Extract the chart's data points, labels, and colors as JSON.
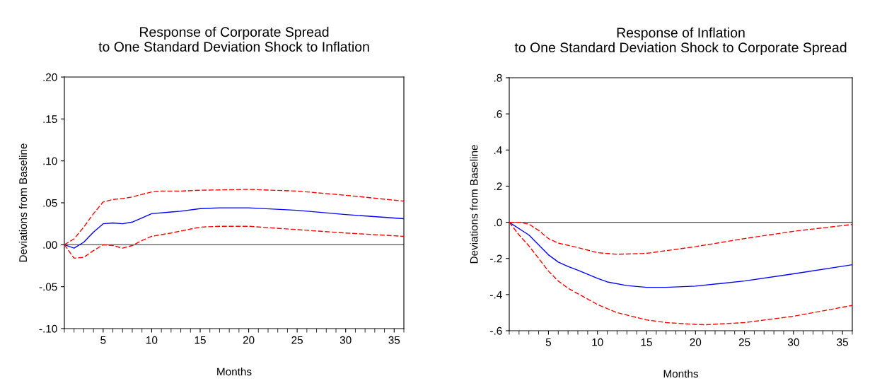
{
  "chart_data": [
    {
      "type": "line",
      "title": "Response of Corporate Spread\nto One Standard Deviation Shock to Inflation",
      "xlabel": "Months",
      "ylabel": "Deviations from Baseline",
      "xlim": [
        1,
        36
      ],
      "ylim": [
        -0.1,
        0.2
      ],
      "xticks": [
        {
          "value": 1,
          "label": null
        },
        {
          "value": 2,
          "label": null
        },
        {
          "value": 3,
          "label": null
        },
        {
          "value": 4,
          "label": null
        },
        5,
        {
          "value": 6,
          "label": null
        },
        {
          "value": 7,
          "label": null
        },
        {
          "value": 8,
          "label": null
        },
        {
          "value": 9,
          "label": null
        },
        10,
        {
          "value": 11,
          "label": null
        },
        {
          "value": 12,
          "label": null
        },
        {
          "value": 13,
          "label": null
        },
        {
          "value": 14,
          "label": null
        },
        15,
        {
          "value": 16,
          "label": null
        },
        {
          "value": 17,
          "label": null
        },
        {
          "value": 18,
          "label": null
        },
        {
          "value": 19,
          "label": null
        },
        20,
        {
          "value": 21,
          "label": null
        },
        {
          "value": 22,
          "label": null
        },
        {
          "value": 23,
          "label": null
        },
        {
          "value": 24,
          "label": null
        },
        25,
        {
          "value": 26,
          "label": null
        },
        {
          "value": 27,
          "label": null
        },
        {
          "value": 28,
          "label": null
        },
        {
          "value": 29,
          "label": null
        },
        30,
        {
          "value": 31,
          "label": null
        },
        {
          "value": 32,
          "label": null
        },
        {
          "value": 33,
          "label": null
        },
        {
          "value": 34,
          "label": null
        },
        35,
        {
          "value": 36,
          "label": null
        }
      ],
      "yticks": [
        {
          "value": -0.1,
          "label": "-.10"
        },
        {
          "value": -0.05,
          "label": "-.05"
        },
        {
          "value": 0.0,
          "label": ".00"
        },
        {
          "value": 0.05,
          "label": ".05"
        },
        {
          "value": 0.1,
          "label": ".10"
        },
        {
          "value": 0.15,
          "label": ".15"
        },
        {
          "value": 0.2,
          "label": ".20"
        }
      ],
      "ref_lines": [
        {
          "axis": "y",
          "value": 0,
          "color": "#555555"
        }
      ],
      "series": [
        {
          "color": "#0000ff",
          "line_style": "solid",
          "x": [
            1,
            2,
            3,
            4,
            5,
            6,
            7,
            8,
            9,
            10,
            12,
            13,
            15,
            17,
            20,
            25,
            30,
            36
          ],
          "values": [
            0,
            -0.004,
            0.003,
            0.015,
            0.025,
            0.026,
            0.025,
            0.027,
            0.032,
            0.037,
            0.039,
            0.04,
            0.043,
            0.044,
            0.044,
            0.041,
            0.036,
            0.031
          ]
        },
        {
          "color": "#ff0000",
          "line_style": "dashed",
          "x": [
            1,
            2,
            3,
            4,
            5,
            6,
            7,
            8,
            9,
            10,
            11,
            13,
            15,
            20,
            25,
            30,
            36
          ],
          "values": [
            0,
            0.007,
            0.021,
            0.037,
            0.051,
            0.054,
            0.055,
            0.057,
            0.06,
            0.063,
            0.064,
            0.064,
            0.065,
            0.066,
            0.064,
            0.059,
            0.052
          ]
        },
        {
          "color": "#ff0000",
          "line_style": "dashed",
          "x": [
            1,
            2,
            3,
            4,
            5,
            6,
            7,
            8,
            9,
            10,
            12,
            15,
            17,
            20,
            25,
            30,
            36
          ],
          "values": [
            0,
            -0.016,
            -0.015,
            -0.007,
            0.0,
            -0.001,
            -0.004,
            -0.001,
            0.005,
            0.01,
            0.014,
            0.021,
            0.022,
            0.022,
            0.018,
            0.014,
            0.01
          ]
        }
      ]
    },
    {
      "type": "line",
      "title": "Response of Inflation\nto One Standard Deviation Shock to Corporate Spread",
      "xlabel": "Months",
      "ylabel": "Deviations from Baseline",
      "xlim": [
        1,
        36
      ],
      "ylim": [
        -0.6,
        0.8
      ],
      "xticks": [
        {
          "value": 1,
          "label": null
        },
        {
          "value": 2,
          "label": null
        },
        {
          "value": 3,
          "label": null
        },
        {
          "value": 4,
          "label": null
        },
        5,
        {
          "value": 6,
          "label": null
        },
        {
          "value": 7,
          "label": null
        },
        {
          "value": 8,
          "label": null
        },
        {
          "value": 9,
          "label": null
        },
        10,
        {
          "value": 11,
          "label": null
        },
        {
          "value": 12,
          "label": null
        },
        {
          "value": 13,
          "label": null
        },
        {
          "value": 14,
          "label": null
        },
        15,
        {
          "value": 16,
          "label": null
        },
        {
          "value": 17,
          "label": null
        },
        {
          "value": 18,
          "label": null
        },
        {
          "value": 19,
          "label": null
        },
        20,
        {
          "value": 21,
          "label": null
        },
        {
          "value": 22,
          "label": null
        },
        {
          "value": 23,
          "label": null
        },
        {
          "value": 24,
          "label": null
        },
        25,
        {
          "value": 26,
          "label": null
        },
        {
          "value": 27,
          "label": null
        },
        {
          "value": 28,
          "label": null
        },
        {
          "value": 29,
          "label": null
        },
        30,
        {
          "value": 31,
          "label": null
        },
        {
          "value": 32,
          "label": null
        },
        {
          "value": 33,
          "label": null
        },
        {
          "value": 34,
          "label": null
        },
        35,
        {
          "value": 36,
          "label": null
        }
      ],
      "yticks": [
        {
          "value": -0.6,
          "label": "-.6"
        },
        {
          "value": -0.4,
          "label": "-.4"
        },
        {
          "value": -0.2,
          "label": "-.2"
        },
        {
          "value": 0.0,
          "label": ".0"
        },
        {
          "value": 0.2,
          "label": ".2"
        },
        {
          "value": 0.4,
          "label": ".4"
        },
        {
          "value": 0.6,
          "label": ".6"
        },
        {
          "value": 0.8,
          "label": ".8"
        }
      ],
      "ref_lines": [
        {
          "axis": "y",
          "value": 0,
          "color": "#555555"
        }
      ],
      "series": [
        {
          "color": "#0000ff",
          "line_style": "solid",
          "x": [
            1,
            3,
            5,
            6,
            7,
            8,
            10,
            11,
            13,
            15,
            17,
            20,
            25,
            30,
            36
          ],
          "values": [
            0,
            -0.07,
            -0.18,
            -0.22,
            -0.245,
            -0.265,
            -0.31,
            -0.33,
            -0.35,
            -0.36,
            -0.36,
            -0.353,
            -0.325,
            -0.285,
            -0.235
          ]
        },
        {
          "color": "#ff0000",
          "line_style": "dashed",
          "x": [
            1,
            2,
            3,
            4,
            5,
            6,
            8,
            10,
            12,
            15,
            20,
            25,
            30,
            36
          ],
          "values": [
            0,
            0.0,
            -0.01,
            -0.045,
            -0.09,
            -0.115,
            -0.14,
            -0.168,
            -0.177,
            -0.172,
            -0.135,
            -0.09,
            -0.05,
            -0.012
          ]
        },
        {
          "color": "#ff0000",
          "line_style": "dashed",
          "x": [
            1,
            2,
            3,
            4,
            5,
            6,
            7,
            8,
            10,
            12,
            15,
            17,
            20,
            21,
            25,
            30,
            36
          ],
          "values": [
            0,
            -0.07,
            -0.13,
            -0.2,
            -0.27,
            -0.325,
            -0.365,
            -0.395,
            -0.455,
            -0.5,
            -0.54,
            -0.555,
            -0.565,
            -0.567,
            -0.555,
            -0.52,
            -0.46
          ]
        }
      ]
    }
  ]
}
